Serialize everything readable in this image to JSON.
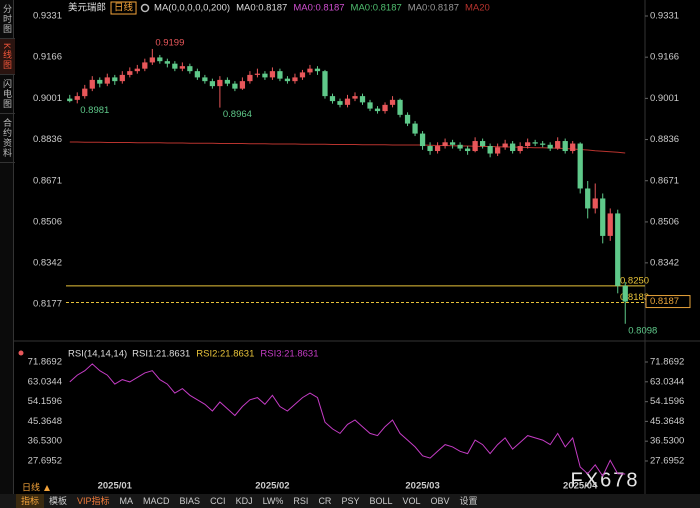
{
  "chart_data": [
    {
      "type": "candlestick",
      "title": "美元瑞郎",
      "period": "日线",
      "indicator": "MA(0,0,0,0,0,200)",
      "ma_labels": [
        {
          "label": "MA0:0.8187",
          "color": "#dddddd"
        },
        {
          "label": "MA0:0.8187",
          "color": "#d04fd0"
        },
        {
          "label": "MA0:0.8187",
          "color": "#4fbf6f"
        },
        {
          "label": "MA0:0.8187",
          "color": "#999999"
        }
      ],
      "categories": [
        null,
        null,
        null,
        null,
        null,
        null,
        "2025/01",
        null,
        null,
        null,
        null,
        null,
        null,
        null,
        null,
        null,
        null,
        null,
        null,
        null,
        null,
        null,
        null,
        null,
        null,
        null,
        null,
        "2025/02",
        null,
        null,
        null,
        null,
        null,
        null,
        null,
        null,
        null,
        null,
        null,
        null,
        null,
        null,
        null,
        null,
        null,
        null,
        null,
        "2025/03",
        null,
        null,
        null,
        null,
        null,
        null,
        null,
        null,
        null,
        null,
        null,
        null,
        null,
        null,
        null,
        null,
        null,
        null,
        null,
        null,
        "2025/04",
        null,
        null,
        null,
        null,
        null,
        null
      ],
      "ohlc": [
        [
          0.9,
          0.9015,
          0.8985,
          0.899
        ],
        [
          0.8995,
          0.9025,
          0.8981,
          0.901
        ],
        [
          0.901,
          0.9055,
          0.9,
          0.904
        ],
        [
          0.904,
          0.909,
          0.903,
          0.9075
        ],
        [
          0.9075,
          0.9085,
          0.9045,
          0.906
        ],
        [
          0.906,
          0.91,
          0.905,
          0.9085
        ],
        [
          0.9085,
          0.9095,
          0.9055,
          0.907
        ],
        [
          0.907,
          0.911,
          0.906,
          0.9095
        ],
        [
          0.9095,
          0.9125,
          0.9085,
          0.911
        ],
        [
          0.911,
          0.9135,
          0.91,
          0.912
        ],
        [
          0.912,
          0.916,
          0.911,
          0.9145
        ],
        [
          0.9145,
          0.9199,
          0.9135,
          0.9165
        ],
        [
          0.9165,
          0.9175,
          0.914,
          0.915
        ],
        [
          0.915,
          0.916,
          0.9125,
          0.914
        ],
        [
          0.914,
          0.915,
          0.911,
          0.912
        ],
        [
          0.912,
          0.9145,
          0.911,
          0.913
        ],
        [
          0.913,
          0.914,
          0.91,
          0.911
        ],
        [
          0.911,
          0.912,
          0.9075,
          0.9085
        ],
        [
          0.9085,
          0.9095,
          0.906,
          0.907
        ],
        [
          0.907,
          0.908,
          0.904,
          0.905
        ],
        [
          0.905,
          0.909,
          0.8964,
          0.9075
        ],
        [
          0.9075,
          0.9085,
          0.905,
          0.906
        ],
        [
          0.906,
          0.907,
          0.903,
          0.904
        ],
        [
          0.904,
          0.9085,
          0.9035,
          0.907
        ],
        [
          0.907,
          0.911,
          0.906,
          0.9095
        ],
        [
          0.9095,
          0.912,
          0.9085,
          0.91
        ],
        [
          0.91,
          0.911,
          0.9075,
          0.9085
        ],
        [
          0.9085,
          0.9125,
          0.9075,
          0.911
        ],
        [
          0.911,
          0.912,
          0.907,
          0.908
        ],
        [
          0.908,
          0.909,
          0.906,
          0.907
        ],
        [
          0.907,
          0.91,
          0.906,
          0.9085
        ],
        [
          0.9085,
          0.9115,
          0.9075,
          0.9105
        ],
        [
          0.9105,
          0.9135,
          0.9095,
          0.912
        ],
        [
          0.912,
          0.913,
          0.9095,
          0.911
        ],
        [
          0.911,
          0.9115,
          0.9,
          0.901
        ],
        [
          0.901,
          0.902,
          0.898,
          0.899
        ],
        [
          0.899,
          0.9,
          0.8965,
          0.8975
        ],
        [
          0.8975,
          0.9015,
          0.8965,
          0.9
        ],
        [
          0.9,
          0.9025,
          0.899,
          0.901
        ],
        [
          0.901,
          0.902,
          0.8975,
          0.8985
        ],
        [
          0.8985,
          0.8995,
          0.895,
          0.896
        ],
        [
          0.896,
          0.897,
          0.894,
          0.895
        ],
        [
          0.895,
          0.8985,
          0.894,
          0.8975
        ],
        [
          0.8975,
          0.901,
          0.8965,
          0.8995
        ],
        [
          0.8995,
          0.9,
          0.8925,
          0.8935
        ],
        [
          0.8935,
          0.8945,
          0.889,
          0.89
        ],
        [
          0.89,
          0.891,
          0.885,
          0.886
        ],
        [
          0.886,
          0.887,
          0.8795,
          0.881
        ],
        [
          0.881,
          0.8825,
          0.8775,
          0.879
        ],
        [
          0.879,
          0.8825,
          0.878,
          0.881
        ],
        [
          0.881,
          0.884,
          0.88,
          0.8825
        ],
        [
          0.8825,
          0.8835,
          0.88,
          0.8815
        ],
        [
          0.8815,
          0.8825,
          0.879,
          0.88
        ],
        [
          0.88,
          0.881,
          0.8775,
          0.879
        ],
        [
          0.879,
          0.8845,
          0.8785,
          0.883
        ],
        [
          0.883,
          0.884,
          0.88,
          0.881
        ],
        [
          0.881,
          0.882,
          0.8765,
          0.878
        ],
        [
          0.878,
          0.882,
          0.877,
          0.8805
        ],
        [
          0.8805,
          0.8835,
          0.8795,
          0.882
        ],
        [
          0.882,
          0.883,
          0.878,
          0.879
        ],
        [
          0.879,
          0.8825,
          0.878,
          0.881
        ],
        [
          0.881,
          0.884,
          0.88,
          0.8825
        ],
        [
          0.8825,
          0.8835,
          0.881,
          0.882
        ],
        [
          0.882,
          0.883,
          0.8805,
          0.8815
        ],
        [
          0.8815,
          0.8825,
          0.879,
          0.88
        ],
        [
          0.88,
          0.8845,
          0.8795,
          0.883
        ],
        [
          0.883,
          0.884,
          0.878,
          0.879
        ],
        [
          0.879,
          0.883,
          0.878,
          0.882
        ],
        [
          0.882,
          0.8825,
          0.862,
          0.864
        ],
        [
          0.864,
          0.867,
          0.852,
          0.856
        ],
        [
          0.856,
          0.866,
          0.854,
          0.86
        ],
        [
          0.86,
          0.862,
          0.842,
          0.845
        ],
        [
          0.845,
          0.856,
          0.843,
          0.854
        ],
        [
          0.854,
          0.8555,
          0.822,
          0.825
        ],
        [
          0.825,
          0.8265,
          0.8098,
          0.8187
        ]
      ],
      "up_color": "#e8575a",
      "down_color": "#5fc98a",
      "series": [
        {
          "name": "MA20",
          "color": "#b8332e",
          "values": [
            0.8826,
            0.8826,
            0.8825,
            0.8825,
            0.8825,
            0.8824,
            0.8824,
            0.8824,
            0.8824,
            0.8823,
            0.8823,
            0.8823,
            0.8823,
            0.8822,
            0.8822,
            0.8822,
            0.8821,
            0.8821,
            0.8821,
            0.8821,
            0.882,
            0.882,
            0.882,
            0.882,
            0.8819,
            0.8819,
            0.8819,
            0.8818,
            0.8818,
            0.8818,
            0.8818,
            0.8817,
            0.8817,
            0.8817,
            0.8817,
            0.8816,
            0.8816,
            0.8816,
            0.8816,
            0.8815,
            0.8815,
            0.8815,
            0.8815,
            0.8814,
            0.8814,
            0.8814,
            0.8814,
            0.8814,
            0.8813,
            0.8812,
            0.8812,
            0.8811,
            0.881,
            0.881,
            0.8809,
            0.8808,
            0.8808,
            0.8807,
            0.8806,
            0.8806,
            0.8805,
            0.8804,
            0.8803,
            0.8803,
            0.8802,
            0.8801,
            0.88,
            0.8798,
            0.8796,
            0.8794,
            0.8791,
            0.8789,
            0.8787,
            0.8785,
            0.8782
          ]
        }
      ],
      "ylim": [
        0.8053,
        0.9355
      ],
      "yticks": [
        0.9331,
        0.9166,
        0.9001,
        0.8836,
        0.8671,
        0.8506,
        0.8342,
        0.8177
      ],
      "hlines": [
        {
          "value": 0.825,
          "label": "0.8250",
          "style": "solid",
          "color": "#e8c33a"
        },
        {
          "value": 0.8183,
          "label": "0.8183",
          "style": "dashed",
          "color": "#e8c33a"
        }
      ],
      "annotations": [
        0.9199,
        0.8981,
        0.8964,
        0.8098
      ],
      "last": 0.8187
    },
    {
      "type": "line",
      "title": "RSI(14,14,14)",
      "legend": [
        {
          "label": "RSI1:21.8631",
          "color": "#dddddd"
        },
        {
          "label": "RSI2:21.8631",
          "color": "#e8c33a"
        },
        {
          "label": "RSI3:21.8631",
          "color": "#c43cc4"
        }
      ],
      "color": "#c43cc4",
      "values": [
        63,
        66,
        68,
        71,
        68,
        66,
        62,
        64,
        63,
        65,
        67,
        68,
        64,
        62,
        58,
        60,
        57,
        55,
        53,
        50,
        54,
        51,
        48,
        52,
        55,
        56,
        53,
        57,
        52,
        50,
        53,
        56,
        58,
        56,
        45,
        42,
        40,
        44,
        46,
        43,
        40,
        39,
        43,
        46,
        40,
        37,
        34,
        30,
        29,
        32,
        35,
        34,
        32,
        31,
        37,
        35,
        31,
        35,
        38,
        33,
        36,
        39,
        38,
        37,
        35,
        40,
        34,
        38,
        25,
        22,
        26,
        21,
        28,
        22,
        21.8631
      ],
      "ylim": [
        20.1,
        74.1
      ],
      "yticks": [
        71.8692,
        63.0344,
        54.1596,
        45.3648,
        {
          "value": 36.53,
          "label": "36.5300"
        },
        27.6952
      ]
    }
  ],
  "sidebar": [
    "分时图",
    "K线图",
    "闪电图",
    "合约资料"
  ],
  "tabs": [
    "指标",
    "模板",
    "VIP指标",
    "MA",
    "MACD",
    "BIAS",
    "CCI",
    "KDJ",
    "LW%",
    "RSI",
    "CR",
    "PSY",
    "BOLL",
    "VOL",
    "OBV",
    "设置"
  ],
  "watermark": "FX678"
}
